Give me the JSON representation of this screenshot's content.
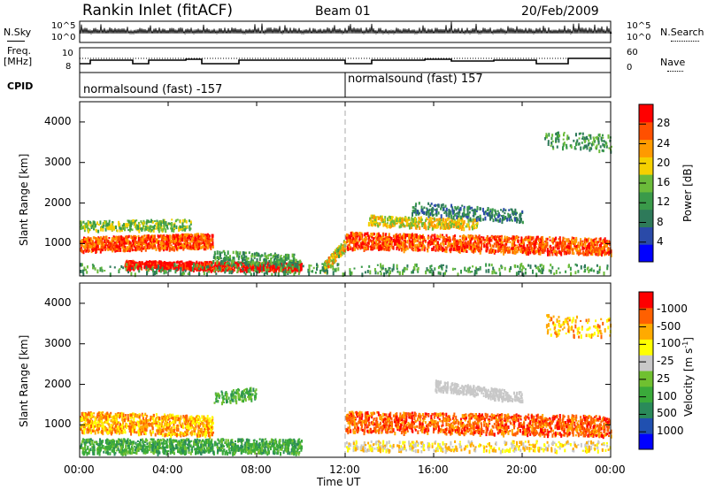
{
  "header": {
    "station": "Rankin Inlet (fitACF)",
    "beam": "Beam 01",
    "date": "20/Feb/2009"
  },
  "left_labels": {
    "nsky": "N.Sky",
    "freq_line1": "Freq.",
    "freq_line2": "[MHz]",
    "cpid": "CPID"
  },
  "right_labels": {
    "nsearch": "N.Search",
    "nave": "Nave"
  },
  "noise_axis": {
    "top": "10^5",
    "bottom": "10^0",
    "right_top": "10^5",
    "right_bottom": "10^0"
  },
  "freq_axis": {
    "left_top": "10",
    "left_bottom": "8",
    "right_top": "60",
    "right_bottom": "0"
  },
  "cpid": {
    "first": "normalsound (fast) -157",
    "second": "normalsound (fast) 157"
  },
  "colors": {
    "power_scale": [
      "#0000ff",
      "#2a4aa8",
      "#2e7a5a",
      "#3a9a4a",
      "#6bbb3a",
      "#f5d000",
      "#ff9a00",
      "#ff5000",
      "#ff0000"
    ],
    "velocity_scale": [
      "#0000ff",
      "#2050b0",
      "#2a8a5a",
      "#3aaa3a",
      "#70c030",
      "#c8c8c8",
      "#ffff00",
      "#ffaa00",
      "#ff6000",
      "#ff0000"
    ]
  },
  "chart_data": [
    {
      "type": "heatmap",
      "name": "power-panel",
      "ylabel": "Slant Range [km]",
      "xlabel": "Time UT",
      "x_ticks": [
        "00:00",
        "04:00",
        "08:00",
        "12:00",
        "16:00",
        "20:00",
        "00:00"
      ],
      "y_ticks": [
        1000,
        2000,
        3000,
        4000
      ],
      "ylim": [
        200,
        4500
      ],
      "colorbar": {
        "label": "Power [dB]",
        "ticks": [
          4,
          8,
          12,
          16,
          20,
          24,
          28
        ]
      }
    },
    {
      "type": "heatmap",
      "name": "velocity-panel",
      "ylabel": "Slant Range [km]",
      "xlabel": "Time UT",
      "x_ticks": [
        "00:00",
        "04:00",
        "08:00",
        "12:00",
        "16:00",
        "20:00",
        "00:00"
      ],
      "y_ticks": [
        1000,
        2000,
        3000,
        4000
      ],
      "ylim": [
        200,
        4500
      ],
      "colorbar": {
        "label": "Velocity [m s^-1]",
        "ticks": [
          "1000",
          "500",
          "100",
          "25",
          "-25",
          "-100",
          "-500",
          "-1000"
        ]
      }
    }
  ]
}
